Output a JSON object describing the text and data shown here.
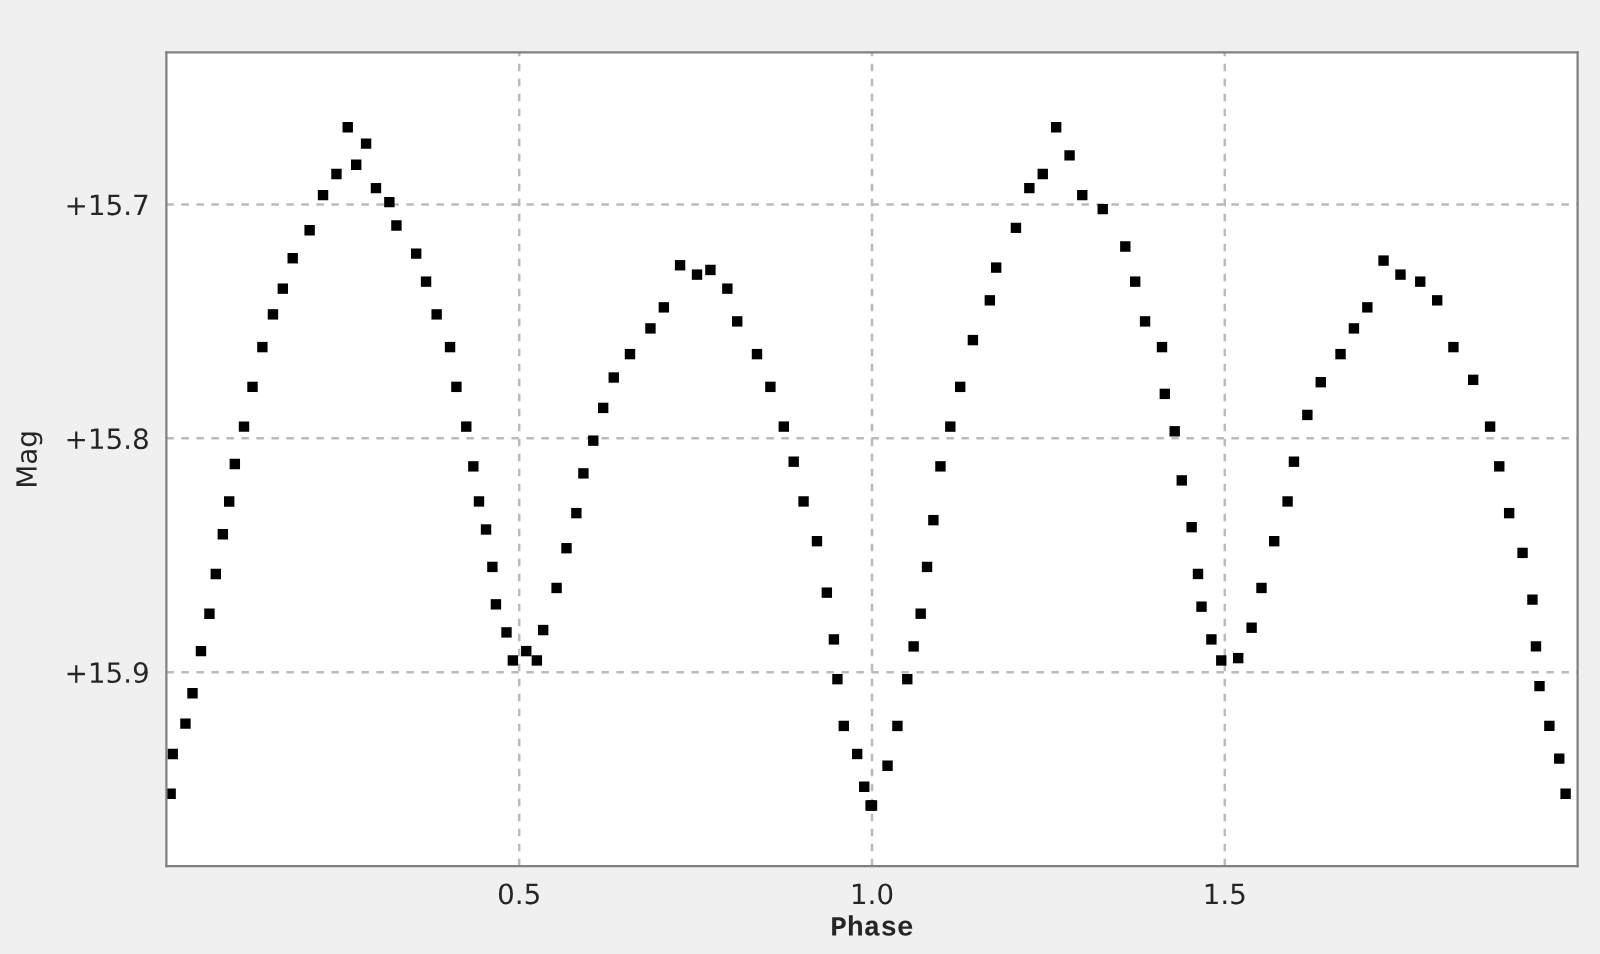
{
  "chart_data": {
    "type": "scatter",
    "xlabel": "Phase",
    "ylabel": "Mag",
    "xlim": [
      0.0,
      2.0
    ],
    "ylim": [
      15.983,
      15.635
    ],
    "xticks": [
      {
        "value": 0.5,
        "label": "0.5"
      },
      {
        "value": 1.0,
        "label": "1.0"
      },
      {
        "value": 1.5,
        "label": "1.5"
      }
    ],
    "yticks": [
      {
        "value": 15.7,
        "label": "+15.7"
      },
      {
        "value": 15.8,
        "label": "+15.8"
      },
      {
        "value": 15.9,
        "label": "+15.9"
      }
    ],
    "grid": true,
    "marker": "square",
    "series": [
      {
        "color": "#000000",
        "x": [
          0.006,
          0.009,
          0.027,
          0.037,
          0.049,
          0.061,
          0.07,
          0.08,
          0.089,
          0.097,
          0.11,
          0.122,
          0.136,
          0.151,
          0.165,
          0.179,
          0.203,
          0.222,
          0.241,
          0.257,
          0.269,
          0.283,
          0.297,
          0.316,
          0.326,
          0.354,
          0.368,
          0.383,
          0.402,
          0.411,
          0.425,
          0.435,
          0.443,
          0.453,
          0.462,
          0.467,
          0.482,
          0.491,
          0.51,
          0.525,
          0.534,
          0.553,
          0.567,
          0.581,
          0.591,
          0.605,
          0.619,
          0.634,
          0.657,
          0.686,
          0.705,
          0.728,
          0.752,
          0.771,
          0.795,
          0.809,
          0.837,
          0.856,
          0.875,
          0.889,
          0.903,
          0.922,
          0.936,
          0.946,
          0.951,
          0.96,
          0.979,
          0.989,
          0.998,
          1.0,
          1.022,
          1.036,
          1.05,
          1.059,
          1.069,
          1.078,
          1.087,
          1.097,
          1.111,
          1.125,
          1.143,
          1.167,
          1.176,
          1.204,
          1.223,
          1.242,
          1.261,
          1.28,
          1.298,
          1.327,
          1.359,
          1.373,
          1.387,
          1.411,
          1.415,
          1.429,
          1.439,
          1.453,
          1.462,
          1.467,
          1.481,
          1.495,
          1.519,
          1.538,
          1.552,
          1.57,
          1.589,
          1.598,
          1.617,
          1.636,
          1.664,
          1.683,
          1.702,
          1.725,
          1.749,
          1.777,
          1.801,
          1.824,
          1.852,
          1.876,
          1.889,
          1.903,
          1.922,
          1.936,
          1.941,
          1.946,
          1.96,
          1.974,
          1.983
        ],
        "values": [
          15.952,
          15.935,
          15.922,
          15.909,
          15.891,
          15.875,
          15.858,
          15.841,
          15.827,
          15.811,
          15.795,
          15.778,
          15.761,
          15.747,
          15.736,
          15.723,
          15.711,
          15.696,
          15.687,
          15.667,
          15.683,
          15.674,
          15.693,
          15.699,
          15.709,
          15.721,
          15.733,
          15.747,
          15.761,
          15.778,
          15.795,
          15.812,
          15.827,
          15.839,
          15.855,
          15.871,
          15.883,
          15.895,
          15.891,
          15.895,
          15.882,
          15.864,
          15.847,
          15.832,
          15.815,
          15.801,
          15.787,
          15.774,
          15.764,
          15.753,
          15.744,
          15.726,
          15.73,
          15.728,
          15.736,
          15.75,
          15.764,
          15.778,
          15.795,
          15.81,
          15.827,
          15.844,
          15.866,
          15.886,
          15.903,
          15.923,
          15.935,
          15.949,
          15.957,
          15.957,
          15.94,
          15.923,
          15.903,
          15.889,
          15.875,
          15.855,
          15.835,
          15.812,
          15.795,
          15.778,
          15.758,
          15.741,
          15.727,
          15.71,
          15.693,
          15.687,
          15.667,
          15.679,
          15.696,
          15.702,
          15.718,
          15.733,
          15.75,
          15.761,
          15.781,
          15.797,
          15.818,
          15.838,
          15.858,
          15.872,
          15.886,
          15.895,
          15.894,
          15.881,
          15.864,
          15.844,
          15.827,
          15.81,
          15.79,
          15.776,
          15.764,
          15.753,
          15.744,
          15.724,
          15.73,
          15.733,
          15.741,
          15.761,
          15.775,
          15.795,
          15.812,
          15.832,
          15.849,
          15.869,
          15.889,
          15.906,
          15.923,
          15.937,
          15.952
        ]
      }
    ]
  }
}
